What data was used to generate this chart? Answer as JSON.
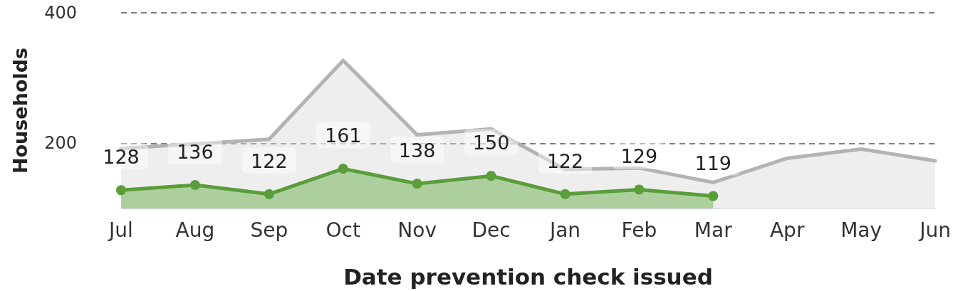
{
  "chart_data": {
    "type": "area",
    "xlabel": "Date prevention check issued",
    "ylabel": "Households",
    "categories": [
      "Jul",
      "Aug",
      "Sep",
      "Oct",
      "Nov",
      "Dec",
      "Jan",
      "Feb",
      "Mar",
      "Apr",
      "May",
      "Jun"
    ],
    "series": [
      {
        "color": "#b3b3b3",
        "marker": "none",
        "values": [
          192,
          199,
          206,
          327,
          213,
          222,
          160,
          162,
          140,
          177,
          191,
          173
        ]
      },
      {
        "color": "#5a9e3a",
        "marker": "circle",
        "values": [
          128,
          136,
          122,
          161,
          138,
          150,
          122,
          129,
          119,
          null,
          null,
          null
        ],
        "value_labels": [
          "128",
          "136",
          "122",
          "161",
          "138",
          "150",
          "122",
          "129",
          "119",
          null,
          null,
          null
        ]
      }
    ],
    "ylim": [
      100,
      400
    ],
    "yticks": [
      200,
      400
    ],
    "grid": "y",
    "line_style": "solid"
  }
}
